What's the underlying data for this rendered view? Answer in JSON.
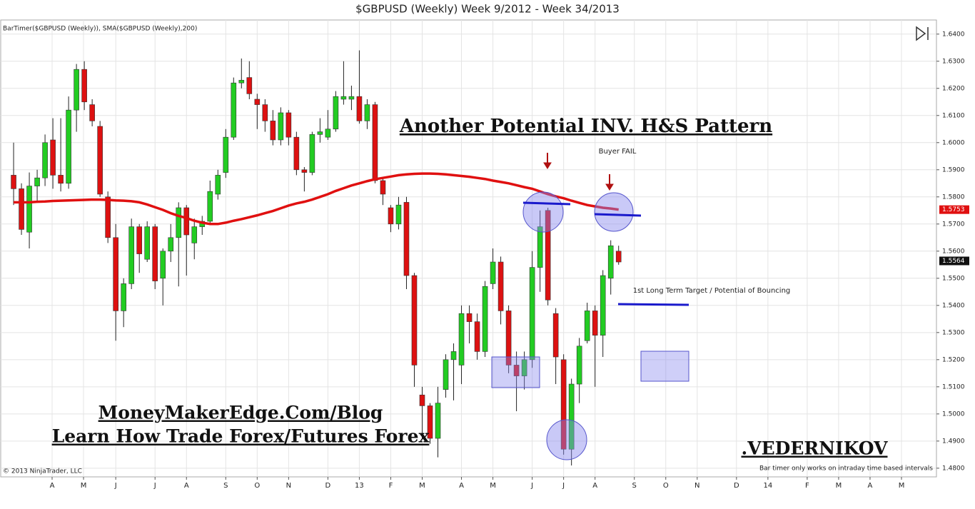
{
  "chart_data": {
    "type": "candlestick",
    "title": "$GBPUSD (Weekly)  Week 9/2012 - Week 34/2013",
    "indicator_label": "BarTimer($GBPUSD (Weekly)), SMA($GBPUSD (Weekly),200)",
    "annotations": {
      "pattern": "Another Potential INV. H&S Pattern",
      "buyer_fail": "Buyer FAIL",
      "target": "1st Long Term Target / Potential of Bouncing",
      "blog": "MoneyMakerEdge.Com/Blog",
      "learn": "Learn How Trade Forex/Futures Forex",
      "author": ".VEDERNIKOV",
      "copyright": "© 2013 NinjaTrader, LLC",
      "bar_timer": "Bar timer only works on intraday time based intervals"
    },
    "up_color": "#22cc22",
    "down_color": "#dd1111",
    "open": [
      1.588,
      1.583,
      1.567,
      1.584,
      1.587,
      1.601,
      1.588,
      1.585,
      1.612,
      1.627,
      1.614,
      1.606,
      1.58,
      1.565,
      1.538,
      1.548,
      1.569,
      1.557,
      1.569,
      1.55,
      1.56,
      1.565,
      1.576,
      1.563,
      1.569,
      1.571,
      1.581,
      1.589,
      1.602,
      1.622,
      1.624,
      1.616,
      1.614,
      1.608,
      1.601,
      1.611,
      1.602,
      1.59,
      1.589,
      1.603,
      1.602,
      1.605,
      1.616,
      1.616,
      1.617,
      1.608,
      1.614,
      1.586,
      1.576,
      1.57,
      1.578,
      1.551,
      1.507,
      1.503,
      1.491,
      1.509,
      1.52,
      1.518,
      1.537,
      1.534,
      1.523,
      1.548,
      1.556,
      1.538,
      1.518,
      1.514,
      1.52,
      1.554,
      1.575,
      1.537,
      1.52,
      1.487,
      1.511,
      1.527,
      1.538,
      1.529,
      1.55,
      1.56
    ],
    "high": [
      1.6,
      1.585,
      1.589,
      1.59,
      1.603,
      1.609,
      1.609,
      1.617,
      1.629,
      1.63,
      1.616,
      1.608,
      1.582,
      1.57,
      1.55,
      1.572,
      1.57,
      1.571,
      1.57,
      1.561,
      1.57,
      1.578,
      1.577,
      1.572,
      1.573,
      1.586,
      1.59,
      1.605,
      1.624,
      1.631,
      1.63,
      1.618,
      1.616,
      1.612,
      1.613,
      1.612,
      1.604,
      1.591,
      1.604,
      1.609,
      1.612,
      1.619,
      1.63,
      1.621,
      1.634,
      1.616,
      1.615,
      1.587,
      1.577,
      1.58,
      1.58,
      1.552,
      1.51,
      1.504,
      1.51,
      1.522,
      1.526,
      1.54,
      1.54,
      1.537,
      1.549,
      1.561,
      1.558,
      1.54,
      1.523,
      1.523,
      1.56,
      1.575,
      1.576,
      1.539,
      1.522,
      1.513,
      1.528,
      1.541,
      1.54,
      1.553,
      1.564,
      1.562
    ],
    "low": [
      1.577,
      1.566,
      1.561,
      1.578,
      1.584,
      1.583,
      1.582,
      1.583,
      1.604,
      1.612,
      1.606,
      1.58,
      1.563,
      1.527,
      1.532,
      1.546,
      1.552,
      1.556,
      1.546,
      1.54,
      1.556,
      1.547,
      1.551,
      1.557,
      1.566,
      1.57,
      1.579,
      1.587,
      1.601,
      1.62,
      1.616,
      1.605,
      1.604,
      1.599,
      1.599,
      1.599,
      1.588,
      1.582,
      1.588,
      1.6,
      1.601,
      1.604,
      1.614,
      1.612,
      1.607,
      1.605,
      1.585,
      1.577,
      1.567,
      1.568,
      1.546,
      1.51,
      1.491,
      1.489,
      1.484,
      1.506,
      1.505,
      1.511,
      1.526,
      1.52,
      1.521,
      1.546,
      1.533,
      1.515,
      1.501,
      1.509,
      1.517,
      1.545,
      1.54,
      1.511,
      1.485,
      1.481,
      1.504,
      1.526,
      1.51,
      1.521,
      1.544,
      1.555
    ],
    "close": [
      1.583,
      1.568,
      1.584,
      1.587,
      1.6,
      1.588,
      1.585,
      1.612,
      1.627,
      1.615,
      1.608,
      1.581,
      1.565,
      1.538,
      1.548,
      1.569,
      1.559,
      1.569,
      1.549,
      1.56,
      1.565,
      1.576,
      1.566,
      1.569,
      1.571,
      1.582,
      1.588,
      1.602,
      1.622,
      1.623,
      1.618,
      1.614,
      1.608,
      1.601,
      1.611,
      1.602,
      1.59,
      1.589,
      1.603,
      1.604,
      1.605,
      1.617,
      1.617,
      1.617,
      1.608,
      1.614,
      1.586,
      1.581,
      1.57,
      1.577,
      1.551,
      1.518,
      1.503,
      1.491,
      1.504,
      1.52,
      1.523,
      1.537,
      1.534,
      1.523,
      1.547,
      1.556,
      1.538,
      1.518,
      1.514,
      1.52,
      1.554,
      1.569,
      1.542,
      1.521,
      1.487,
      1.511,
      1.525,
      1.538,
      1.529,
      1.551,
      1.562,
      1.556
    ],
    "sma": {
      "color": "#e01010",
      "values": [
        1.578,
        1.578,
        1.578,
        1.5782,
        1.5783,
        1.5785,
        1.5786,
        1.5787,
        1.5788,
        1.5789,
        1.579,
        1.579,
        1.5789,
        1.5787,
        1.5786,
        1.5784,
        1.578,
        1.5772,
        1.5762,
        1.5752,
        1.574,
        1.573,
        1.5722,
        1.5712,
        1.5705,
        1.57,
        1.57,
        1.5705,
        1.5712,
        1.5718,
        1.5725,
        1.5732,
        1.574,
        1.5748,
        1.5758,
        1.5768,
        1.5776,
        1.5782,
        1.579,
        1.58,
        1.581,
        1.5822,
        1.5832,
        1.5842,
        1.585,
        1.5858,
        1.5865,
        1.587,
        1.5875,
        1.588,
        1.5883,
        1.5885,
        1.5886,
        1.5886,
        1.5885,
        1.5883,
        1.588,
        1.5877,
        1.5874,
        1.587,
        1.5866,
        1.586,
        1.5855,
        1.585,
        1.5843,
        1.5836,
        1.583,
        1.582,
        1.581,
        1.5802,
        1.5795,
        1.5786,
        1.5778,
        1.577,
        1.5765,
        1.576,
        1.5757,
        1.5753
      ]
    },
    "last_sma": 1.5753,
    "last_price": 1.5564,
    "ylim": [
      1.4768,
      1.6452
    ],
    "yticks": [
      {
        "value": 1.48,
        "label": "1.4800"
      },
      {
        "value": 1.49,
        "label": "1.4900"
      },
      {
        "value": 1.5,
        "label": "1.5000"
      },
      {
        "value": 1.51,
        "label": "1.5100"
      },
      {
        "value": 1.52,
        "label": "1.5200"
      },
      {
        "value": 1.53,
        "label": "1.5300"
      },
      {
        "value": 1.54,
        "label": "1.5400"
      },
      {
        "value": 1.55,
        "label": "1.5500"
      },
      {
        "value": 1.56,
        "label": "1.5600"
      },
      {
        "value": 1.57,
        "label": "1.5700"
      },
      {
        "value": 1.58,
        "label": "1.5800"
      },
      {
        "value": 1.59,
        "label": "1.5900"
      },
      {
        "value": 1.6,
        "label": "1.6000"
      },
      {
        "value": 1.61,
        "label": "1.6100"
      },
      {
        "value": 1.62,
        "label": "1.6200"
      },
      {
        "value": 1.63,
        "label": "1.6300"
      },
      {
        "value": 1.64,
        "label": "1.6400"
      }
    ],
    "xlim": [
      -1.64,
      117.45
    ],
    "xticks": [
      {
        "value": 4.9,
        "label": "A"
      },
      {
        "value": 8.9,
        "label": "M"
      },
      {
        "value": 13,
        "label": "J"
      },
      {
        "value": 18,
        "label": "J"
      },
      {
        "value": 22,
        "label": "A"
      },
      {
        "value": 27,
        "label": "S"
      },
      {
        "value": 31,
        "label": "O"
      },
      {
        "value": 35,
        "label": "N"
      },
      {
        "value": 40,
        "label": "D"
      },
      {
        "value": 44,
        "label": "13"
      },
      {
        "value": 48,
        "label": "F"
      },
      {
        "value": 52,
        "label": "M"
      },
      {
        "value": 57,
        "label": "A"
      },
      {
        "value": 61,
        "label": "M"
      },
      {
        "value": 66,
        "label": "J"
      },
      {
        "value": 70,
        "label": "J"
      },
      {
        "value": 74,
        "label": "A"
      },
      {
        "value": 79,
        "label": "S"
      },
      {
        "value": 83,
        "label": "O"
      },
      {
        "value": 87,
        "label": "N"
      },
      {
        "value": 92,
        "label": "D"
      },
      {
        "value": 96,
        "label": "14"
      },
      {
        "value": 101,
        "label": "F"
      },
      {
        "value": 105,
        "label": "M"
      },
      {
        "value": 109,
        "label": "A"
      },
      {
        "value": 113,
        "label": "M"
      }
    ],
    "grid": true
  }
}
